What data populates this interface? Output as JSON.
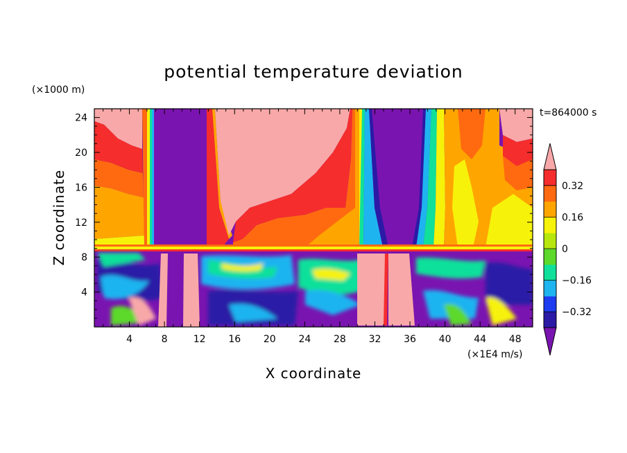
{
  "chart_data": {
    "type": "heatmap",
    "title": "potential temperature deviation",
    "xlabel": "X coordinate",
    "ylabel": "Z coordinate",
    "x_units": "(×1E4 m/s)",
    "y_units": "(×1000 m)",
    "time_label": "t=864000 s",
    "xlim": [
      0,
      50
    ],
    "ylim": [
      0,
      25
    ],
    "x_ticks": [
      "4",
      "8",
      "12",
      "16",
      "20",
      "24",
      "28",
      "32",
      "36",
      "40",
      "44",
      "48"
    ],
    "y_ticks": [
      "4",
      "8",
      "12",
      "16",
      "20",
      "24"
    ],
    "colorbar": {
      "levels": [
        -0.4,
        -0.32,
        -0.24,
        -0.16,
        -0.08,
        0,
        0.08,
        0.16,
        0.24,
        0.32,
        0.4
      ],
      "tick_labels": [
        "0.32",
        "0.16",
        "0",
        "−0.16",
        "−0.32"
      ],
      "colors": [
        "#7a14b0",
        "#2b1aa6",
        "#1e3cf0",
        "#1eb4f0",
        "#10e09a",
        "#5cd92b",
        "#b6e60c",
        "#f6f20a",
        "#ffa500",
        "#ff6a10",
        "#f52d2d",
        "#f8a8a8"
      ],
      "extend": "both"
    },
    "upper_region": {
      "z_range": [
        9,
        25
      ],
      "bands": [
        {
          "x": [
            0,
            5
          ],
          "color": "#f8a8a8"
        },
        {
          "x": [
            5,
            6.5
          ],
          "color": "#ffa500"
        },
        {
          "x": [
            6.5,
            7.3
          ],
          "color": "#10e09a"
        },
        {
          "x": [
            7.3,
            13
          ],
          "color": "#7a14b0"
        },
        {
          "x": [
            13,
            14
          ],
          "color": "#f52d2d"
        },
        {
          "x": [
            14,
            29.5
          ],
          "color": "#f8a8a8"
        },
        {
          "x": [
            29.5,
            32
          ],
          "color": "#1eb4f0"
        },
        {
          "x": [
            32,
            37
          ],
          "color": "#7a14b0"
        },
        {
          "x": [
            37,
            39.5
          ],
          "color": "#1eb4f0"
        },
        {
          "x": [
            39.5,
            46
          ],
          "color": "#ffa500"
        },
        {
          "x": [
            46,
            50
          ],
          "color": "#f8a8a8"
        }
      ]
    },
    "lower_region": {
      "z_range": [
        0,
        8.5
      ],
      "dominant_color": "#7a14b0",
      "features": [
        {
          "x": [
            8,
            9
          ],
          "color": "#f8a8a8"
        },
        {
          "x": [
            10,
            12
          ],
          "color": "#f8a8a8"
        },
        {
          "x": [
            31,
            34
          ],
          "color": "#f8a8a8"
        },
        {
          "x": [
            34,
            37
          ],
          "color": "#f8a8a8"
        }
      ]
    }
  }
}
